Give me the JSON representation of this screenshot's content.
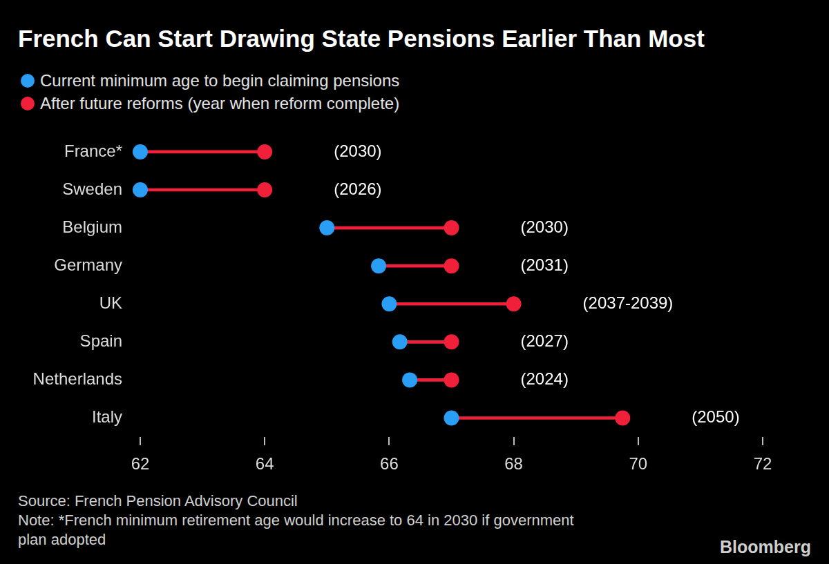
{
  "chart_data": {
    "type": "dumbbell",
    "title": "French Can Start Drawing State Pensions Earlier Than Most",
    "orientation": "horizontal",
    "categories": [
      "France*",
      "Sweden",
      "Belgium",
      "Germany",
      "UK",
      "Spain",
      "Netherlands",
      "Italy"
    ],
    "series": [
      {
        "name": "Current minimum age to begin claiming pensions",
        "color": "#2a9df4",
        "values": [
          62,
          62,
          65,
          65.83,
          66,
          66.17,
          66.33,
          67
        ]
      },
      {
        "name": "After future reforms (year when reform complete)",
        "color": "#f0203a",
        "values": [
          64,
          64,
          67,
          67,
          68,
          67,
          67,
          69.75
        ]
      }
    ],
    "annotations": [
      "(2030)",
      "(2026)",
      "(2030)",
      "(2031)",
      "(2037-2039)",
      "(2027)",
      "(2024)",
      "(2050)"
    ],
    "xlim": [
      62,
      72
    ],
    "xticks": [
      62,
      64,
      66,
      68,
      70,
      72
    ],
    "grid": false,
    "legend": "top-left",
    "source": "Source: French Pension Advisory Council",
    "note": "Note: *French minimum retirement age would increase to 64 in 2030 if government plan adopted",
    "credit": "Bloomberg"
  }
}
